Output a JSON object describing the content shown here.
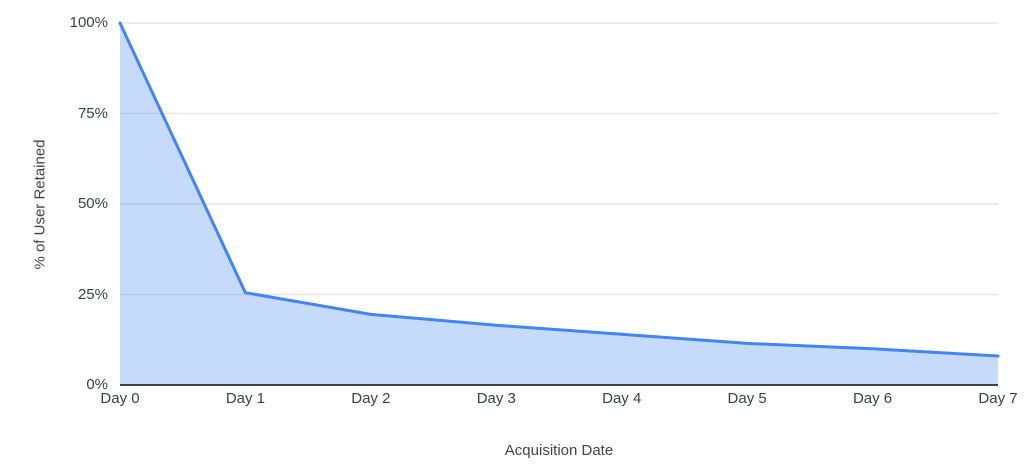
{
  "chart_data": {
    "type": "area",
    "title": "",
    "xlabel": "Acquisition Date",
    "ylabel": "% of User Retained",
    "categories": [
      "Day 0",
      "Day 1",
      "Day 2",
      "Day 3",
      "Day 4",
      "Day 5",
      "Day 6",
      "Day 7"
    ],
    "series": [
      {
        "name": "% of User Retained",
        "values": [
          100,
          25.5,
          19.5,
          16.5,
          14,
          11.5,
          10,
          8
        ]
      }
    ],
    "ylim": [
      0,
      100
    ],
    "yticks": [
      {
        "label": "0%",
        "value": 0
      },
      {
        "label": "25%",
        "value": 25
      },
      {
        "label": "50%",
        "value": 50
      },
      {
        "label": "75%",
        "value": 75
      },
      {
        "label": "100%",
        "value": 100
      }
    ],
    "grid": true,
    "legend": "none",
    "colors": {
      "line": "#4285f4",
      "fill": "#4285f4",
      "fill_opacity": 0.3,
      "gridline": "#e6e6e6",
      "baseline": "#424242",
      "tick_text": "#3c4043",
      "axis_title_text": "#434343",
      "background": "#ffffff"
    }
  }
}
